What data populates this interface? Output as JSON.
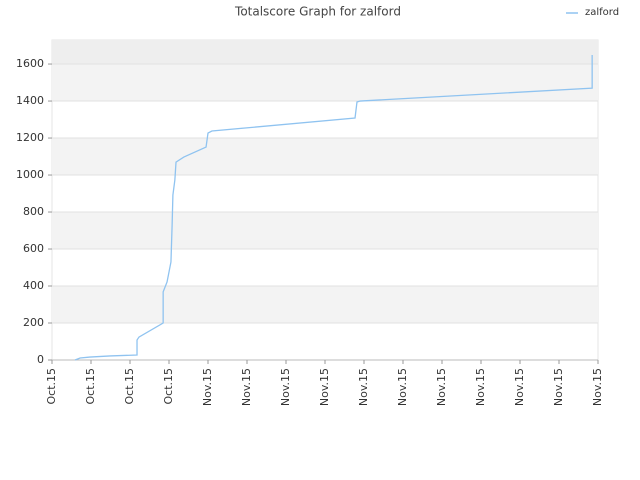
{
  "chart_data": {
    "type": "line",
    "title": "Totalscore Graph for zalford",
    "x": [
      0.59,
      0.72,
      0.97,
      1.49,
      2.18,
      2.18,
      2.23,
      2.85,
      2.85,
      2.95,
      3.05,
      3.08,
      3.1,
      3.15,
      3.18,
      3.38,
      3.95,
      4.0,
      4.1,
      7.77,
      7.82,
      7.9,
      13.85,
      13.85
    ],
    "series": [
      {
        "name": "zalford",
        "color": "#8fc3f0",
        "values": [
          0,
          11,
          16,
          22,
          27,
          108,
          124,
          200,
          368,
          422,
          530,
          730,
          892,
          973,
          1070,
          1097,
          1151,
          1227,
          1238,
          1308,
          1395,
          1400,
          1470,
          1649
        ]
      }
    ],
    "xlim": [
      0,
      14
    ],
    "xticks": [
      {
        "value": 0,
        "label": "Oct.15"
      },
      {
        "value": 1,
        "label": "Oct.15"
      },
      {
        "value": 2,
        "label": "Oct.15"
      },
      {
        "value": 3,
        "label": "Oct.15"
      },
      {
        "value": 4,
        "label": "Nov.15"
      },
      {
        "value": 5,
        "label": "Nov.15"
      },
      {
        "value": 6,
        "label": "Nov.15"
      },
      {
        "value": 7,
        "label": "Nov.15"
      },
      {
        "value": 8,
        "label": "Nov.15"
      },
      {
        "value": 9,
        "label": "Nov.15"
      },
      {
        "value": 10,
        "label": "Nov.15"
      },
      {
        "value": 11,
        "label": "Nov.15"
      },
      {
        "value": 12,
        "label": "Nov.15"
      },
      {
        "value": 13,
        "label": "Nov.15"
      },
      {
        "value": 14,
        "label": "Nov.15"
      }
    ],
    "ylim": [
      0,
      1730
    ],
    "yticks": [
      0,
      200,
      400,
      600,
      800,
      1000,
      1200,
      1400,
      1600
    ],
    "grid": true,
    "legend": "top-right"
  }
}
